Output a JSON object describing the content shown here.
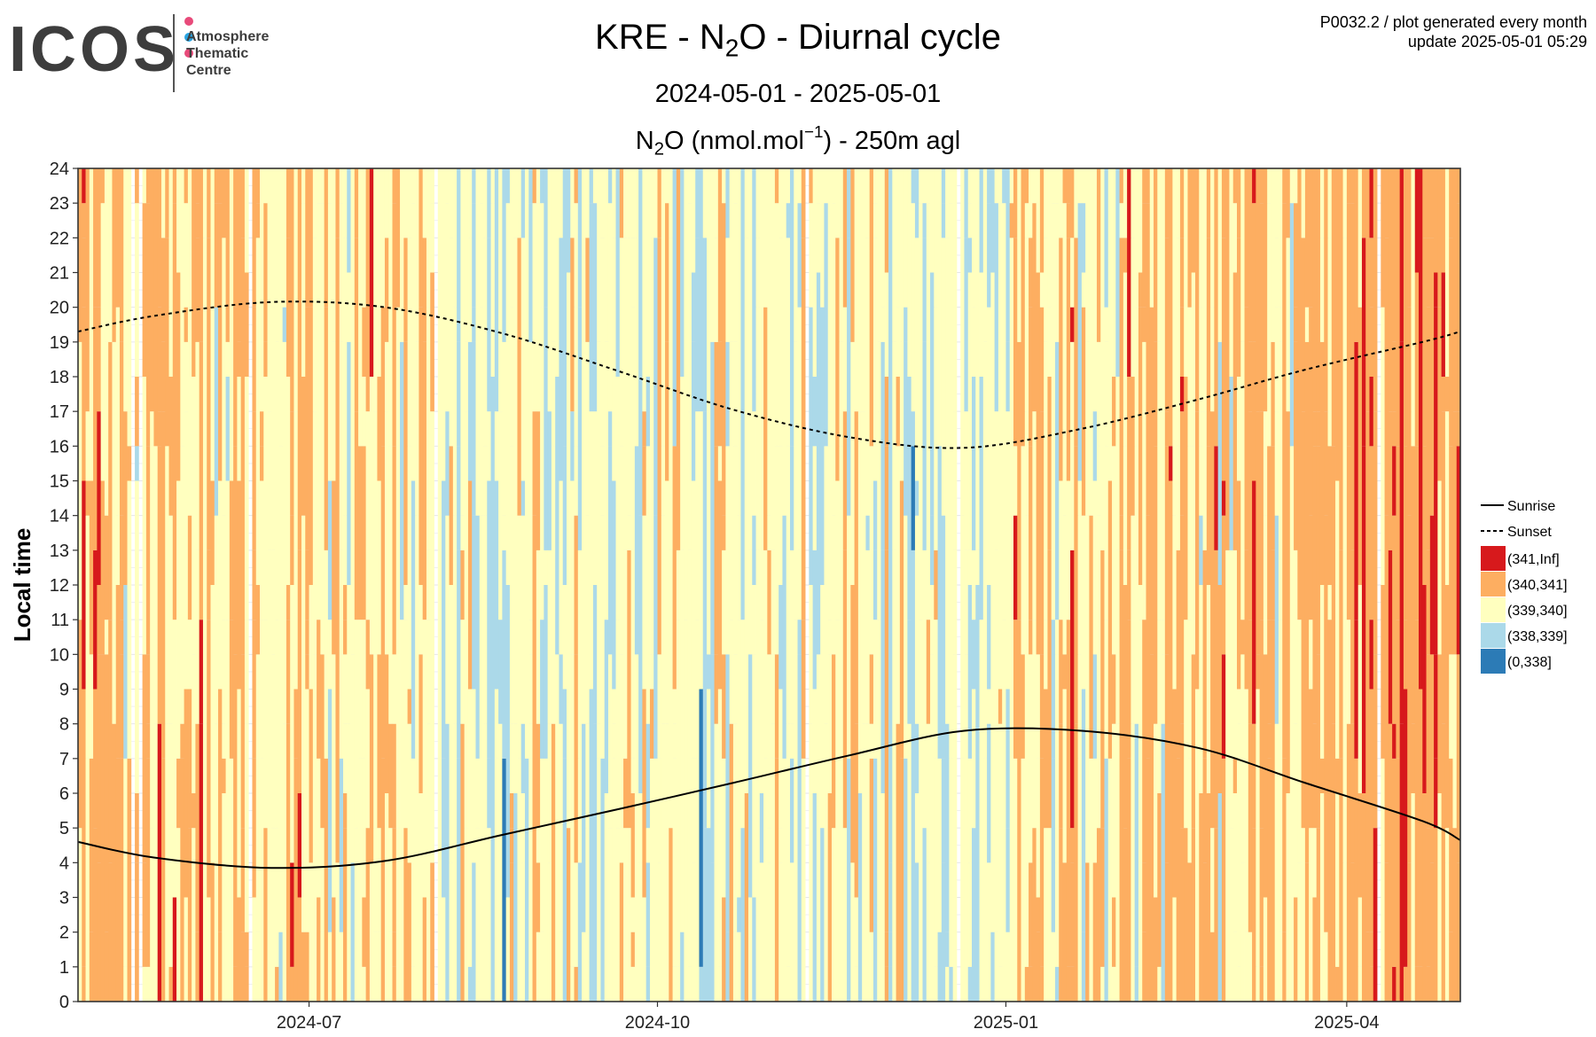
{
  "logo": {
    "wordmark": "ICOS",
    "line1": "Atmosphere",
    "line2": "Thematic",
    "line3": "Centre",
    "dot_colors": [
      "#e84a7a",
      "#2aa3e0",
      "#e84a7a"
    ]
  },
  "meta": {
    "line1": "P0032.2 / plot generated every month",
    "line2": "update  2025-05-01 05:29"
  },
  "header": {
    "title_prefix": "KRE - N",
    "title_sub": "2",
    "title_suffix": "O - Diurnal cycle",
    "period": "2024-05-01 - 2025-05-01",
    "var_prefix": "N",
    "var_sub": "2",
    "var_mid": "O (nmol.mol",
    "var_sup": "−1",
    "var_suffix": ") - 250m agl"
  },
  "chart_data": {
    "type": "heatmap",
    "ylabel": "Local time",
    "xlabel": "",
    "x_range": [
      "2024-05-01",
      "2025-05-01"
    ],
    "ylim": [
      0,
      24
    ],
    "y_ticks": [
      0,
      1,
      2,
      3,
      4,
      5,
      6,
      7,
      8,
      9,
      10,
      11,
      12,
      13,
      14,
      15,
      16,
      17,
      18,
      19,
      20,
      21,
      22,
      23,
      24
    ],
    "x_ticks": [
      {
        "date": "2024-07-01",
        "label": "2024-07"
      },
      {
        "date": "2024-10-01",
        "label": "2024-10"
      },
      {
        "date": "2025-01-01",
        "label": "2025-01"
      },
      {
        "date": "2025-04-01",
        "label": "2025-04"
      }
    ],
    "grid": true,
    "legend_position": "right",
    "classes": [
      {
        "label": "(341,Inf]",
        "color": "#d7191c"
      },
      {
        "label": "(340,341]",
        "color": "#fdae61"
      },
      {
        "label": "(339,340]",
        "color": "#ffffbf"
      },
      {
        "label": "(338,339]",
        "color": "#abd9e9"
      },
      {
        "label": "(0,338]",
        "color": "#2c7bb6"
      }
    ],
    "lines": [
      {
        "name": "Sunrise",
        "style": "solid",
        "points": [
          [
            "2024-05-01",
            4.6
          ],
          [
            "2024-05-21",
            4.15
          ],
          [
            "2024-06-21",
            3.85
          ],
          [
            "2024-07-21",
            4.05
          ],
          [
            "2024-08-21",
            4.8
          ],
          [
            "2024-09-21",
            5.55
          ],
          [
            "2024-10-21",
            6.3
          ],
          [
            "2024-11-21",
            7.1
          ],
          [
            "2024-12-21",
            7.8
          ],
          [
            "2025-01-21",
            7.8
          ],
          [
            "2025-02-21",
            7.3
          ],
          [
            "2025-03-21",
            6.3
          ],
          [
            "2025-04-21",
            5.2
          ],
          [
            "2025-05-01",
            4.65
          ]
        ]
      },
      {
        "name": "Sunset",
        "style": "dashed",
        "points": [
          [
            "2024-05-01",
            19.3
          ],
          [
            "2024-05-21",
            19.75
          ],
          [
            "2024-06-21",
            20.15
          ],
          [
            "2024-07-21",
            20.0
          ],
          [
            "2024-08-21",
            19.25
          ],
          [
            "2024-09-21",
            18.15
          ],
          [
            "2024-10-21",
            17.05
          ],
          [
            "2024-11-21",
            16.25
          ],
          [
            "2024-12-21",
            15.95
          ],
          [
            "2025-01-21",
            16.5
          ],
          [
            "2025-02-21",
            17.35
          ],
          [
            "2025-03-21",
            18.2
          ],
          [
            "2025-04-21",
            19.0
          ],
          [
            "2025-05-01",
            19.3
          ]
        ]
      }
    ],
    "monthly_class_mix": [
      {
        "month": "2024-05",
        "weights": [
          0.14,
          0.4,
          0.32,
          0.12,
          0.02
        ]
      },
      {
        "month": "2024-06",
        "weights": [
          0.1,
          0.38,
          0.37,
          0.13,
          0.02
        ]
      },
      {
        "month": "2024-07",
        "weights": [
          0.06,
          0.32,
          0.38,
          0.22,
          0.02
        ]
      },
      {
        "month": "2024-08",
        "weights": [
          0.04,
          0.2,
          0.4,
          0.33,
          0.03
        ]
      },
      {
        "month": "2024-09",
        "weights": [
          0.03,
          0.16,
          0.38,
          0.38,
          0.05
        ]
      },
      {
        "month": "2024-10",
        "weights": [
          0.04,
          0.22,
          0.4,
          0.3,
          0.04
        ]
      },
      {
        "month": "2024-11",
        "weights": [
          0.04,
          0.28,
          0.42,
          0.24,
          0.02
        ]
      },
      {
        "month": "2024-12",
        "weights": [
          0.01,
          0.1,
          0.45,
          0.42,
          0.02
        ]
      },
      {
        "month": "2025-01",
        "weights": [
          0.08,
          0.34,
          0.38,
          0.18,
          0.02
        ]
      },
      {
        "month": "2025-02",
        "weights": [
          0.12,
          0.42,
          0.32,
          0.13,
          0.01
        ]
      },
      {
        "month": "2025-03",
        "weights": [
          0.1,
          0.46,
          0.34,
          0.09,
          0.01
        ]
      },
      {
        "month": "2025-04",
        "weights": [
          0.22,
          0.55,
          0.18,
          0.05,
          0.0
        ]
      }
    ],
    "legend_lines": [
      {
        "label": "Sunrise",
        "style": "solid"
      },
      {
        "label": "Sunset",
        "style": "dashed"
      }
    ]
  }
}
